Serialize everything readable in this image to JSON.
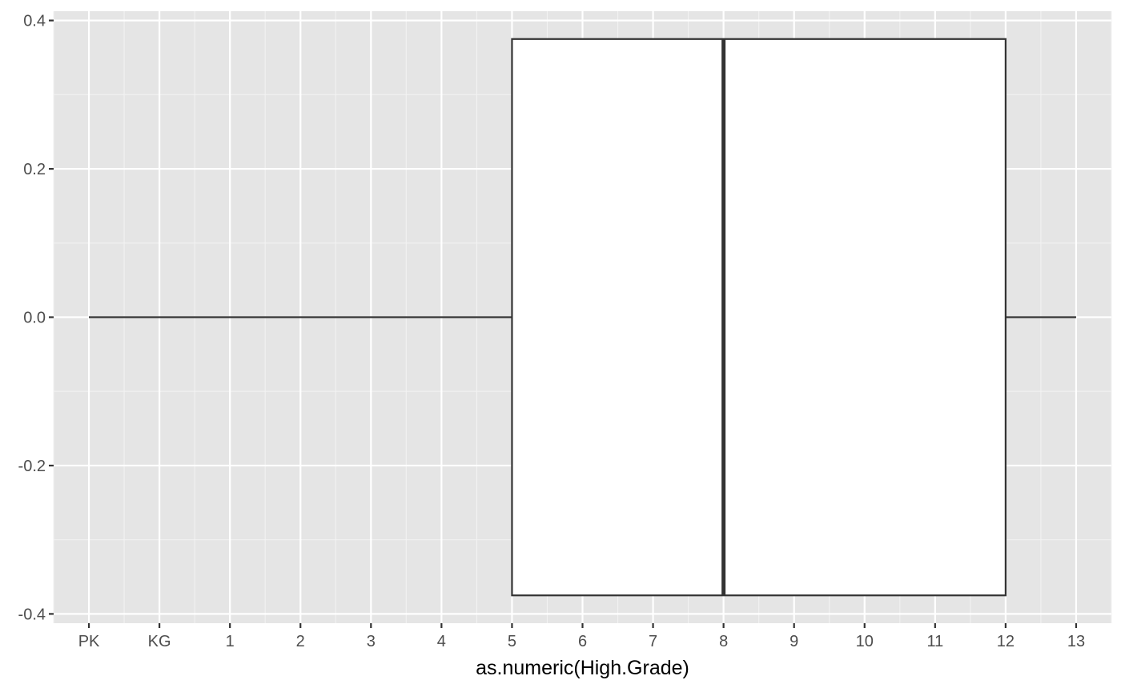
{
  "chart_data": {
    "type": "boxplot",
    "title": "",
    "xlabel": "as.numeric(High.Grade)",
    "ylabel": "",
    "x_ticks": [
      {
        "value": 0,
        "label": "PK"
      },
      {
        "value": 1,
        "label": "KG"
      },
      {
        "value": 2,
        "label": "1"
      },
      {
        "value": 3,
        "label": "2"
      },
      {
        "value": 4,
        "label": "3"
      },
      {
        "value": 5,
        "label": "4"
      },
      {
        "value": 6,
        "label": "5"
      },
      {
        "value": 7,
        "label": "6"
      },
      {
        "value": 8,
        "label": "7"
      },
      {
        "value": 9,
        "label": "8"
      },
      {
        "value": 10,
        "label": "9"
      },
      {
        "value": 11,
        "label": "10"
      },
      {
        "value": 12,
        "label": "11"
      },
      {
        "value": 13,
        "label": "12"
      },
      {
        "value": 14,
        "label": "13"
      }
    ],
    "y_ticks": [
      {
        "value": 0.4,
        "label": "0.4"
      },
      {
        "value": 0.2,
        "label": "0.2"
      },
      {
        "value": 0.0,
        "label": "0.0"
      },
      {
        "value": -0.2,
        "label": "-0.2"
      },
      {
        "value": -0.4,
        "label": "-0.4"
      }
    ],
    "xlim": [
      -0.5,
      14.5
    ],
    "ylim": [
      -0.4,
      0.4
    ],
    "orientation": "horizontal",
    "box": {
      "whisker_low": 0,
      "q1": 6,
      "median": 9,
      "q3": 13,
      "whisker_high": 14,
      "y_center": 0.0,
      "half_height": 0.375
    },
    "grid": true,
    "legend": "none",
    "colors": {
      "panel_background": "#e5e5e5",
      "grid_major": "#ffffff",
      "grid_minor": "#f2f2f2",
      "box_fill": "#ffffff",
      "box_line": "#333333",
      "tick_label": "#4d4d4d",
      "tick_mark": "#333333",
      "axis_title": "#000000"
    }
  }
}
